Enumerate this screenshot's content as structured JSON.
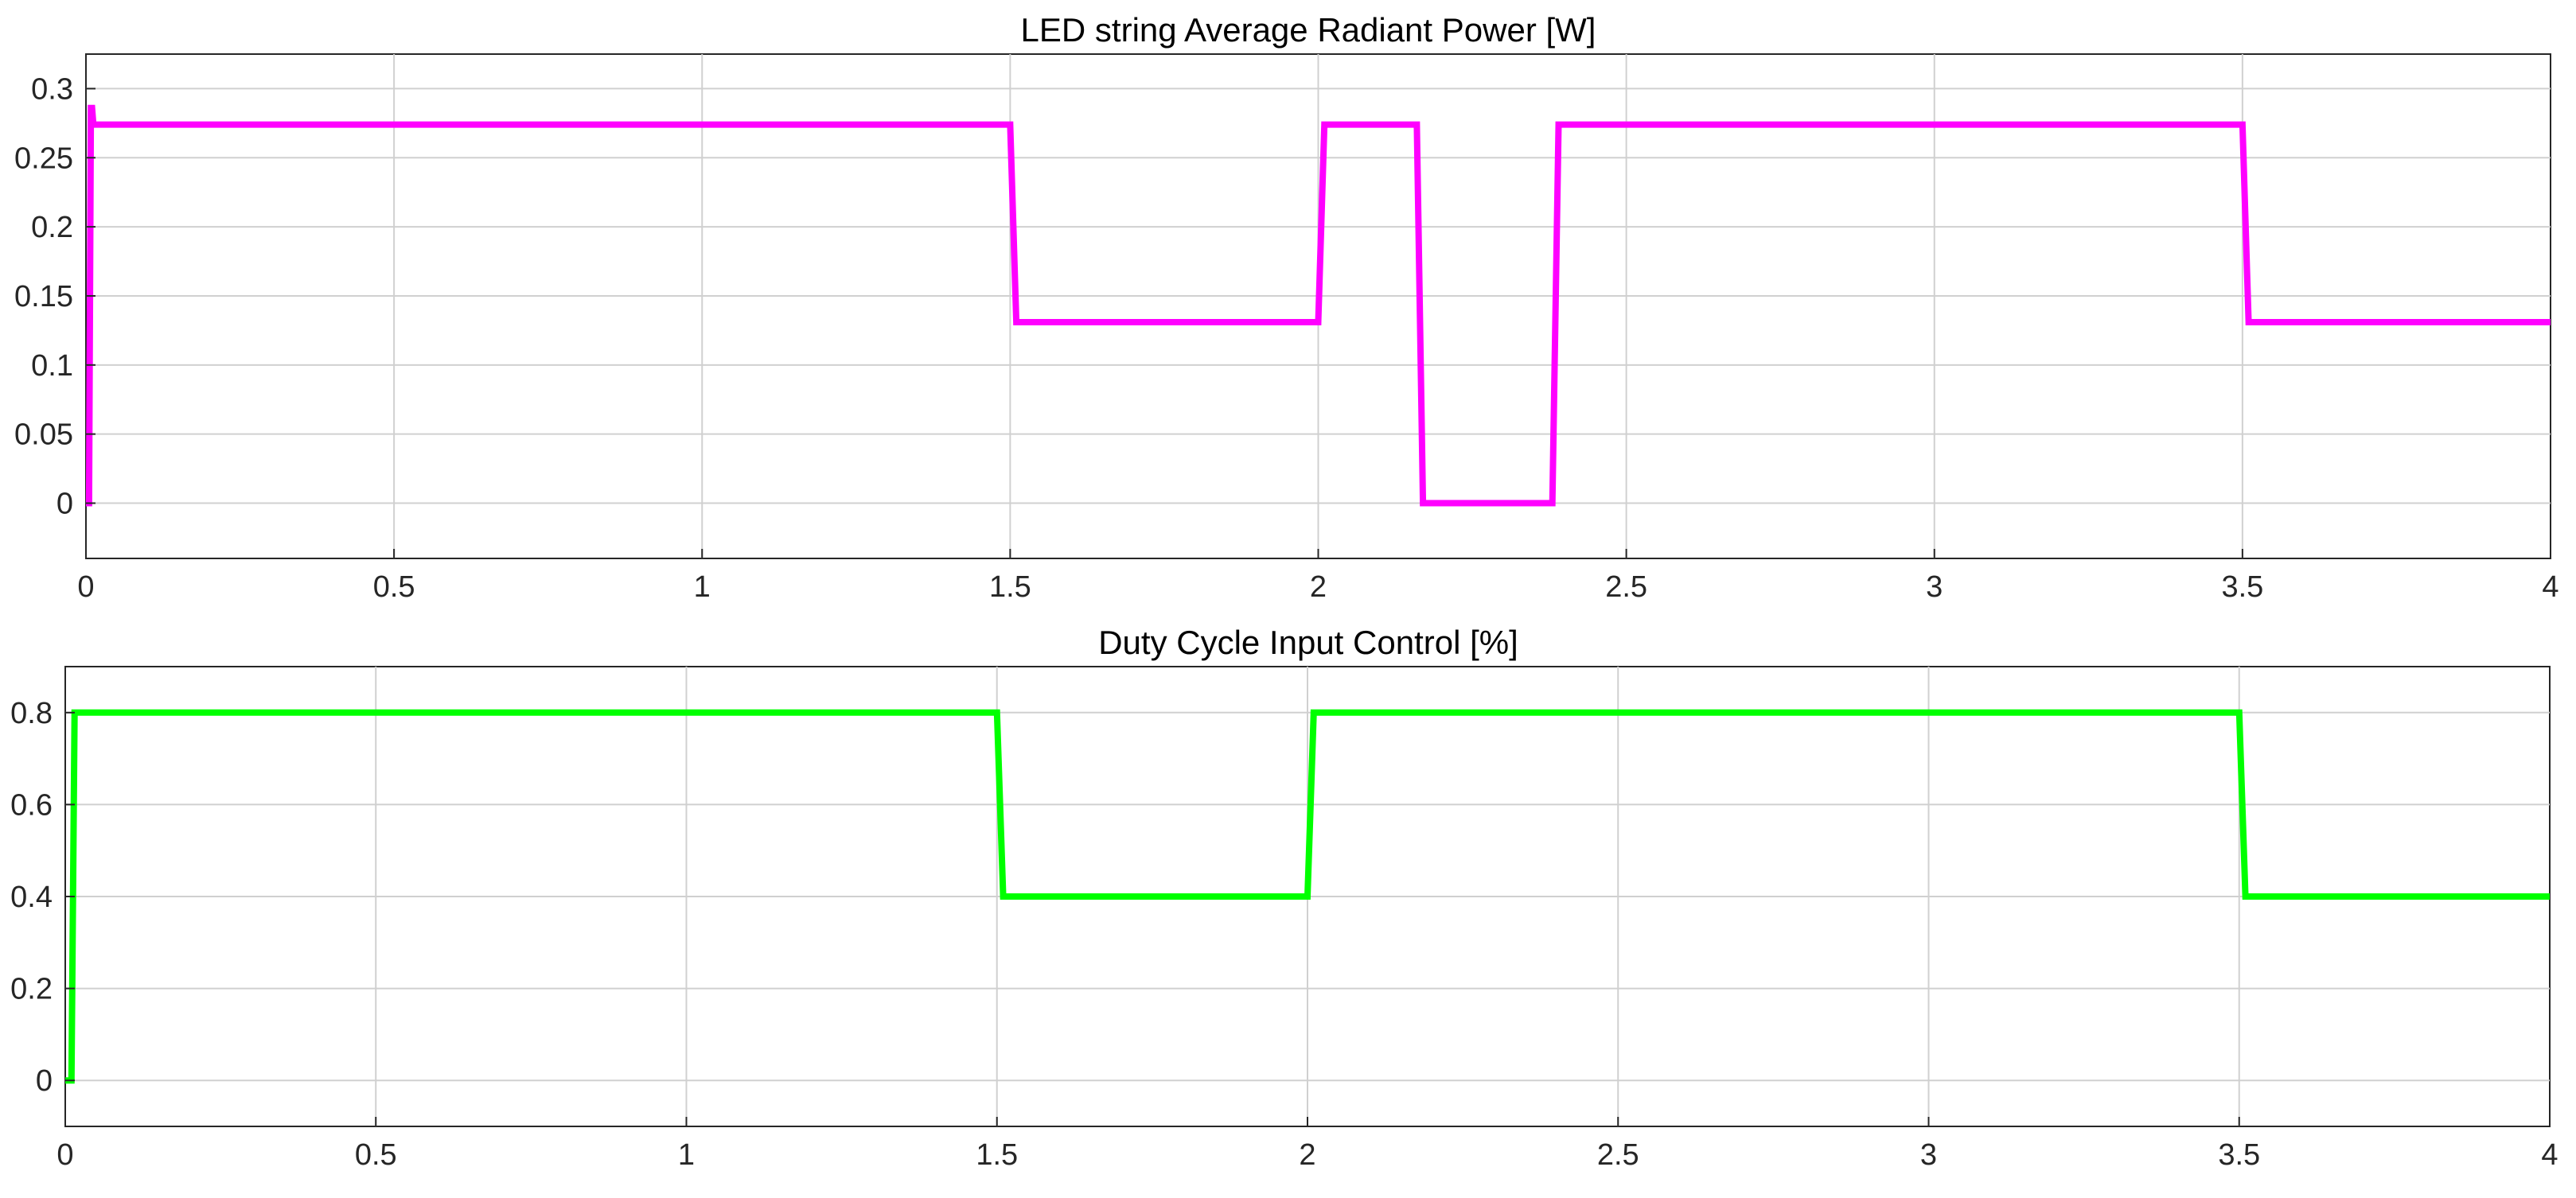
{
  "chart_data": [
    {
      "type": "line",
      "title": "LED string Average Radiant Power [W]",
      "xlabel": "",
      "ylabel": "",
      "xlim": [
        0,
        4
      ],
      "ylim": [
        -0.04,
        0.325
      ],
      "xticks": [
        0,
        0.5,
        1,
        1.5,
        2,
        2.5,
        3,
        3.5,
        4
      ],
      "yticks": [
        0,
        0.05,
        0.1,
        0.15,
        0.2,
        0.25,
        0.3
      ],
      "xtick_labels": [
        "0",
        "0.5",
        "1",
        "1.5",
        "2",
        "2.5",
        "3",
        "3.5",
        "4"
      ],
      "ytick_labels": [
        "0",
        "0.05",
        "0.1",
        "0.15",
        "0.2",
        "0.25",
        "0.3"
      ],
      "grid": true,
      "color": "#ff00ff",
      "series": [
        {
          "x": [
            0,
            0.005,
            0.008,
            0.01,
            0.012,
            1.5,
            1.51,
            2.0,
            2.01,
            2.16,
            2.17,
            2.38,
            2.39,
            3.5,
            3.51,
            4.0
          ],
          "values": [
            0,
            0,
            0.286,
            0.286,
            0.274,
            0.274,
            0.131,
            0.131,
            0.274,
            0.274,
            0,
            0,
            0.274,
            0.274,
            0.131,
            0.131
          ]
        }
      ]
    },
    {
      "type": "line",
      "title": "Duty Cycle Input Control [%]",
      "xlabel": "",
      "ylabel": "",
      "xlim": [
        0,
        4
      ],
      "ylim": [
        -0.1,
        0.9
      ],
      "xticks": [
        0,
        0.5,
        1,
        1.5,
        2,
        2.5,
        3,
        3.5,
        4
      ],
      "yticks": [
        0,
        0.2,
        0.4,
        0.6,
        0.8
      ],
      "xtick_labels": [
        "0",
        "0.5",
        "1",
        "1.5",
        "2",
        "2.5",
        "3",
        "3.5",
        "4"
      ],
      "ytick_labels": [
        "0",
        "0.2",
        "0.4",
        "0.6",
        "0.8"
      ],
      "grid": true,
      "color": "#00ff00",
      "series": [
        {
          "x": [
            0,
            0.01,
            0.015,
            1.5,
            1.51,
            2.0,
            2.01,
            3.5,
            3.51,
            4.0
          ],
          "values": [
            0,
            0,
            0.8,
            0.8,
            0.4,
            0.4,
            0.8,
            0.8,
            0.4,
            0.4
          ]
        }
      ]
    }
  ]
}
